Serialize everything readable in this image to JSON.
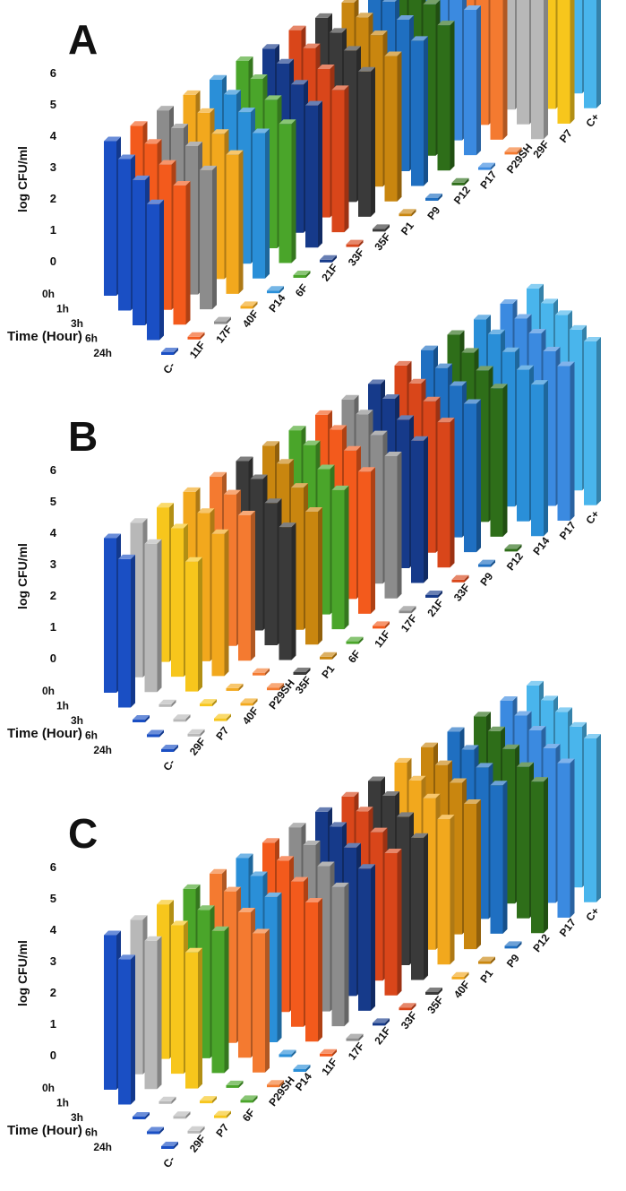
{
  "figure": {
    "panels": [
      "A",
      "B",
      "C"
    ]
  },
  "colors": {
    "C-": "#1a4fc4",
    "11F": "#f35a1c",
    "17F": "#8c8c8c",
    "40F": "#f2a81d",
    "P14": "#2a8fd8",
    "6F": "#4aa52a",
    "21F": "#163a8a",
    "33F": "#d9461a",
    "35F": "#3a3a3a",
    "P1": "#c9860f",
    "P9": "#1f6fc1",
    "P12": "#2e6e19",
    "P17": "#3b8ae0",
    "P29SH": "#f47a30",
    "29F": "#b8b8b8",
    "P7": "#f7c61c",
    "C+": "#49b5ec"
  },
  "chart_data": [
    {
      "panel": "A",
      "type": "bar",
      "subtype": "3d-grouped-bar",
      "ylabel": "log CFU/ml",
      "zlabel": "Time (Hour)",
      "ylim": [
        0,
        6
      ],
      "yticks": [
        "0",
        "1",
        "2",
        "3",
        "4",
        "5",
        "6"
      ],
      "times": [
        "0h",
        "1h",
        "3h",
        "6h",
        "24h"
      ],
      "categories": [
        "C-",
        "11F",
        "17F",
        "40F",
        "P14",
        "6F",
        "21F",
        "33F",
        "35F",
        "P1",
        "P9",
        "P12",
        "P17",
        "P29SH",
        "29F",
        "P7",
        "C+"
      ],
      "visible_category_labels": [
        "C-",
        "11F",
        "17F",
        "40F",
        "P14",
        "6F",
        "21F",
        "33F",
        "35F",
        "P1",
        "P9",
        "P12",
        "P17",
        "P29SH",
        "29F",
        "P7",
        "C+"
      ],
      "values": [
        [
          5.0,
          4.9,
          4.7,
          4.4,
          0
        ],
        [
          5.0,
          4.9,
          4.7,
          4.5,
          0
        ],
        [
          5.0,
          4.9,
          4.8,
          4.5,
          0
        ],
        [
          5.0,
          4.9,
          4.7,
          4.5,
          0
        ],
        [
          5.0,
          5.0,
          4.9,
          4.7,
          0
        ],
        [
          5.1,
          5.0,
          4.8,
          4.5,
          0
        ],
        [
          5.0,
          5.0,
          4.8,
          4.6,
          0
        ],
        [
          5.1,
          5.0,
          4.8,
          4.6,
          0
        ],
        [
          5.0,
          5.0,
          4.9,
          4.7,
          0
        ],
        [
          5.0,
          5.0,
          4.9,
          4.7,
          0
        ],
        [
          5.0,
          5.0,
          4.9,
          4.7,
          0
        ],
        [
          5.0,
          5.0,
          4.9,
          4.7,
          0
        ],
        [
          5.1,
          5.0,
          4.9,
          4.7,
          0
        ],
        [
          5.1,
          5.1,
          5.0,
          4.8,
          0
        ],
        [
          5.1,
          5.1,
          5.1,
          5.0,
          5.0
        ],
        [
          5.1,
          5.1,
          5.1,
          5.1,
          5.0
        ],
        [
          5.1,
          5.1,
          5.2,
          5.2,
          5.3
        ]
      ]
    },
    {
      "panel": "B",
      "type": "bar",
      "subtype": "3d-grouped-bar",
      "ylabel": "log CFU/ml",
      "zlabel": "Time (Hour)",
      "ylim": [
        0,
        6
      ],
      "yticks": [
        "0",
        "1",
        "2",
        "3",
        "4",
        "5",
        "6"
      ],
      "times": [
        "0h",
        "1h",
        "3h",
        "6h",
        "24h"
      ],
      "categories": [
        "C-",
        "29F",
        "P7",
        "40F",
        "P29SH",
        "35F",
        "P1",
        "6F",
        "11F",
        "17F",
        "21F",
        "33F",
        "P9",
        "P12",
        "P14",
        "P17",
        "C+"
      ],
      "visible_category_labels": [
        "C-",
        "29F",
        "P7",
        "40F",
        "P29SH",
        "35F",
        "P1",
        "6F",
        "11F",
        "17F",
        "21F",
        "33F",
        "P9",
        "P12",
        "P14",
        "P17",
        "C+"
      ],
      "values": [
        [
          5.0,
          4.8,
          0,
          0,
          0
        ],
        [
          5.0,
          4.8,
          0,
          0,
          0
        ],
        [
          5.0,
          4.8,
          4.2,
          0,
          0
        ],
        [
          5.0,
          4.8,
          4.6,
          0,
          0
        ],
        [
          5.0,
          4.9,
          4.7,
          0,
          0
        ],
        [
          5.0,
          4.9,
          4.6,
          4.3,
          0
        ],
        [
          5.0,
          4.9,
          4.6,
          4.3,
          0
        ],
        [
          5.0,
          5.0,
          4.7,
          4.5,
          0
        ],
        [
          5.0,
          5.0,
          4.8,
          4.6,
          0
        ],
        [
          5.0,
          5.0,
          4.8,
          4.6,
          0
        ],
        [
          5.0,
          5.0,
          4.8,
          4.6,
          0
        ],
        [
          5.1,
          5.0,
          4.9,
          4.7,
          0
        ],
        [
          5.1,
          5.0,
          4.9,
          4.8,
          0
        ],
        [
          5.1,
          5.0,
          4.9,
          4.8,
          0
        ],
        [
          5.1,
          5.1,
          5.0,
          4.9,
          4.9
        ],
        [
          5.1,
          5.1,
          5.1,
          5.0,
          5.0
        ],
        [
          5.1,
          5.1,
          5.2,
          5.2,
          5.3
        ]
      ]
    },
    {
      "panel": "C",
      "type": "bar",
      "subtype": "3d-grouped-bar",
      "ylabel": "log CFU/ml",
      "zlabel": "Time (Hour)",
      "ylim": [
        0,
        6
      ],
      "yticks": [
        "0",
        "1",
        "2",
        "3",
        "4",
        "5",
        "6"
      ],
      "times": [
        "0h",
        "1h",
        "3h",
        "6h",
        "24h"
      ],
      "categories": [
        "C-",
        "29F",
        "P7",
        "6F",
        "P29SH",
        "P14",
        "11F",
        "17F",
        "21F",
        "33F",
        "35F",
        "40F",
        "P1",
        "P9",
        "P12",
        "P17",
        "C+"
      ],
      "visible_category_labels": [
        "C-",
        "29F",
        "P7",
        "6F",
        "P29SH",
        "P14",
        "11F",
        "17F",
        "21F",
        "33F",
        "35F",
        "40F",
        "P1",
        "P9",
        "P12",
        "P17",
        "C+"
      ],
      "values": [
        [
          5.0,
          4.7,
          0,
          0,
          0
        ],
        [
          5.0,
          4.8,
          0,
          0,
          0
        ],
        [
          5.0,
          4.8,
          4.4,
          0,
          0
        ],
        [
          5.0,
          4.8,
          4.6,
          0,
          0
        ],
        [
          5.0,
          4.9,
          4.7,
          4.5,
          0
        ],
        [
          5.0,
          4.9,
          4.7,
          0,
          0
        ],
        [
          5.0,
          4.9,
          4.7,
          4.5,
          0
        ],
        [
          5.0,
          4.9,
          4.7,
          4.5,
          0
        ],
        [
          5.0,
          5.0,
          4.8,
          4.6,
          0
        ],
        [
          5.0,
          5.0,
          4.8,
          4.6,
          0
        ],
        [
          5.0,
          5.0,
          4.8,
          4.6,
          0
        ],
        [
          5.1,
          5.0,
          4.9,
          4.7,
          0
        ],
        [
          5.1,
          5.0,
          4.9,
          4.7,
          0
        ],
        [
          5.1,
          5.0,
          4.9,
          4.8,
          0
        ],
        [
          5.1,
          5.1,
          5.0,
          4.9,
          4.9
        ],
        [
          5.1,
          5.1,
          5.1,
          5.0,
          5.0
        ],
        [
          5.1,
          5.1,
          5.2,
          5.2,
          5.3
        ]
      ]
    }
  ]
}
